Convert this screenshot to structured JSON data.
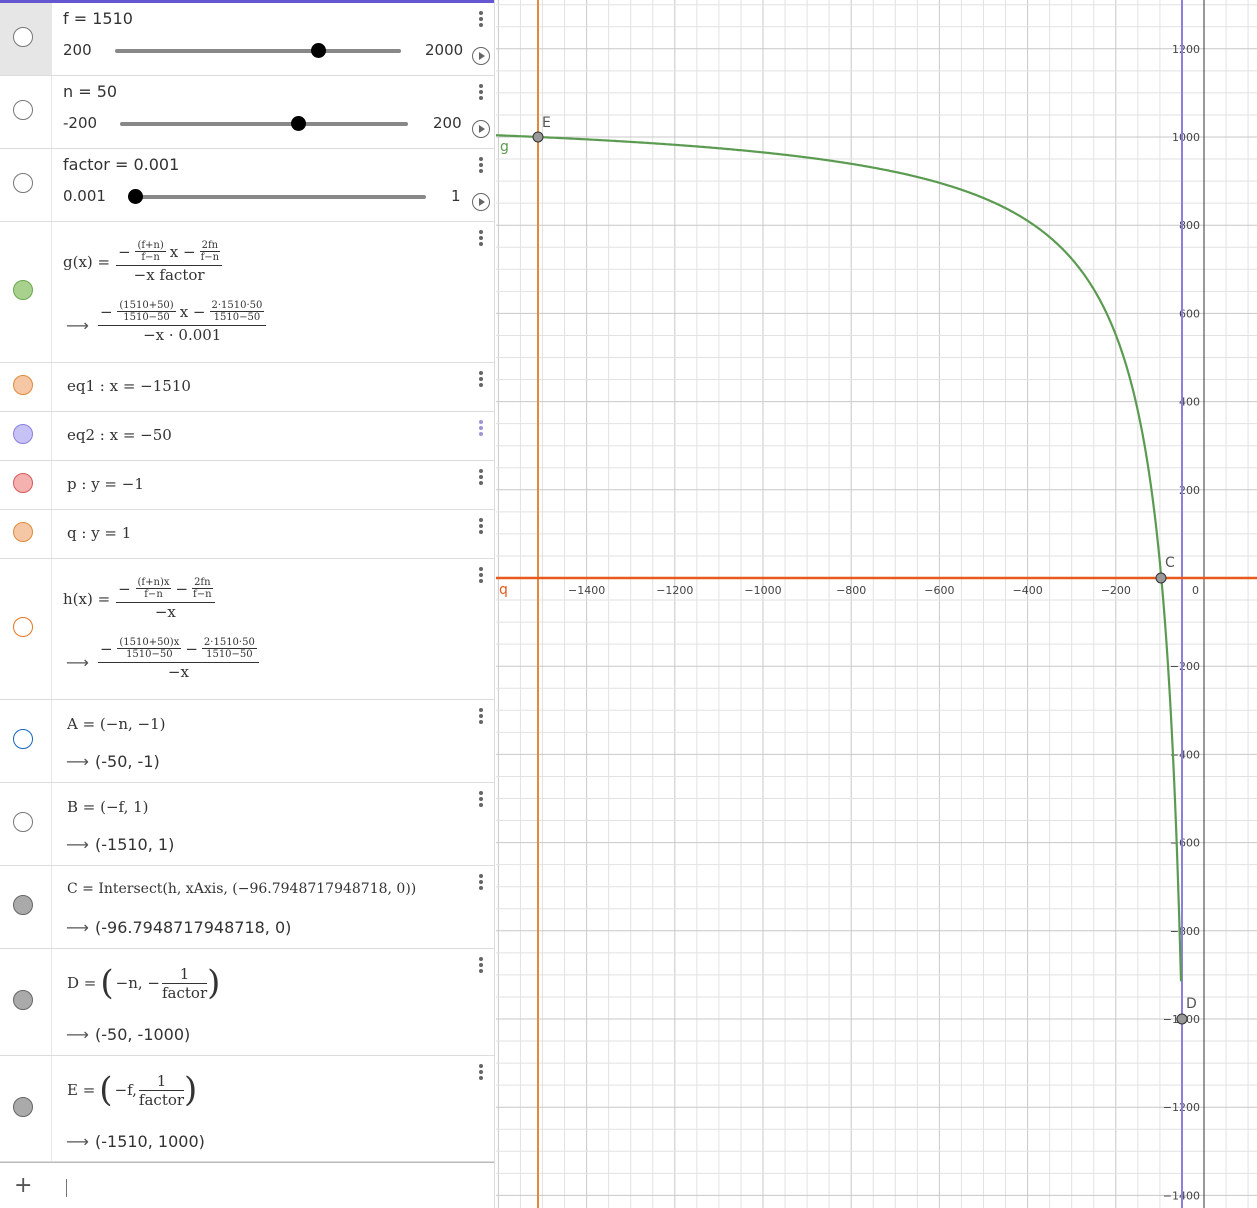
{
  "algebra": {
    "sliders": [
      {
        "label": "f = 1510",
        "min": "200",
        "max": "2000",
        "value_fraction": 0.73
      },
      {
        "label": "n = 50",
        "min": "-200",
        "max": "200",
        "value_fraction": 0.625
      },
      {
        "label": "factor = 0.001",
        "min": "0.001",
        "max": "1",
        "value_fraction": 0.0
      }
    ],
    "g": {
      "name": "g(x) =",
      "num1": "(f+n)",
      "den1": "f−n",
      "mid": "x −",
      "num2": "2fn",
      "den2": "f−n",
      "denominator": "−x factor",
      "v_num1": "(1510+50)",
      "v_den1": "1510−50",
      "v_mid": "x −",
      "v_num2": "2·1510·50",
      "v_den2": "1510−50",
      "v_denominator": "−x · 0.001",
      "color": "#6aa84f"
    },
    "eq1": {
      "label": "eq1 :  x = −1510",
      "color": "#f4a460"
    },
    "eq2": {
      "label": "eq2 :  x = −50",
      "color": "#a9a4f0"
    },
    "p": {
      "label": "p :  y = −1",
      "color": "#ef6b6b"
    },
    "q": {
      "label": "q :  y = 1",
      "color": "#f4a460"
    },
    "h": {
      "name": "h(x) =",
      "num1": "(f+n)x",
      "den1": "f−n",
      "mid": "−",
      "num2": "2fn",
      "den2": "f−n",
      "denominator": "−x",
      "v_num1": "(1510+50)x",
      "v_den1": "1510−50",
      "v_mid": "−",
      "v_num2": "2·1510·50",
      "v_den2": "1510−50",
      "v_denominator": "−x",
      "color": "#e9751f"
    },
    "A": {
      "def": "A = (−n, −1)",
      "value": "(-50, -1)",
      "color": "#1565c0"
    },
    "B": {
      "def": "B = (−f, 1)",
      "value": "(-1510, 1)"
    },
    "C": {
      "def": "C = Intersect(h, xAxis, (−96.7948717948718, 0))",
      "value": "(-96.7948717948718, 0)"
    },
    "D": {
      "def_pre": "D =",
      "def_left": "−n, −",
      "num": "1",
      "den": "factor",
      "value": "(-50, -1000)"
    },
    "E": {
      "def_pre": "E =",
      "def_left": "−f,",
      "num": "1",
      "den": "factor",
      "value": "(-1510, 1000)"
    },
    "input_plus": "+",
    "arrow": "⟶"
  },
  "graph": {
    "x_ticks": [
      "−1400",
      "−1200",
      "−1000",
      "−800",
      "−600",
      "−400",
      "−200",
      "0"
    ],
    "y_ticks": [
      "1200",
      "1000",
      "800",
      "600",
      "400",
      "200",
      "−200",
      "−400",
      "−600",
      "−800",
      "−1000",
      "−1200",
      "−1400"
    ],
    "labels": {
      "g": "g",
      "q": "q",
      "E": "E",
      "C": "C",
      "D": "D"
    },
    "colors": {
      "g": "#5b9b51",
      "eq1": "#e08a3c",
      "eq2": "#8b80dc",
      "h": "#e85a1c",
      "grid": "#e2e2e2",
      "major": "#c8c8c8"
    }
  }
}
